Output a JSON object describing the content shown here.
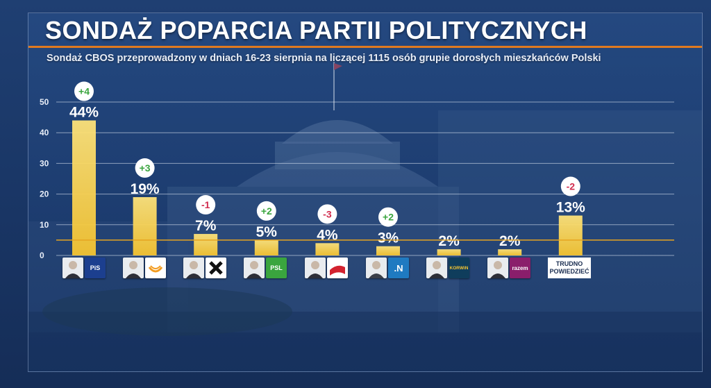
{
  "header": {
    "title": "SONDAŻ POPARCIA PARTII POLITYCZNYCH",
    "subtitle": "Sondaż CBOS przeprowadzony w dniach 16-23 sierpnia na liczącej 1115 osób grupie dorosłych mieszkańców Polski"
  },
  "chart_data": {
    "type": "bar",
    "categories": [
      "PiS",
      "PO",
      "Kukiz'15",
      "PSL",
      "SLD",
      ".Nowoczesna",
      "KORWiN",
      "Razem",
      "TRUDNO POWIEDZIEĆ"
    ],
    "values": [
      44,
      19,
      7,
      5,
      4,
      3,
      2,
      2,
      13
    ],
    "value_labels": [
      "44%",
      "19%",
      "7%",
      "5%",
      "4%",
      "3%",
      "2%",
      "2%",
      "13%"
    ],
    "changes": [
      "+4",
      "+3",
      "-1",
      "+2",
      "-3",
      "+2",
      "",
      "",
      "-2"
    ],
    "ylim": [
      0,
      50
    ],
    "yticks": [
      0,
      10,
      20,
      30,
      40,
      50
    ],
    "threshold": 5,
    "grid": true,
    "colors": {
      "bar": "#f5c431",
      "bar_light": "#fde27a",
      "threshold_line": "#e6a420",
      "change_positive": "#3aa53e",
      "change_negative": "#d12c4e"
    }
  },
  "logos": {
    "pis": "PiS",
    "psl": "PSL",
    "nowoczesna": ".N",
    "korwin": "KORWiN",
    "razem": "razem",
    "undecided_line1": "TRUDNO",
    "undecided_line2": "POWIEDZIEĆ"
  }
}
